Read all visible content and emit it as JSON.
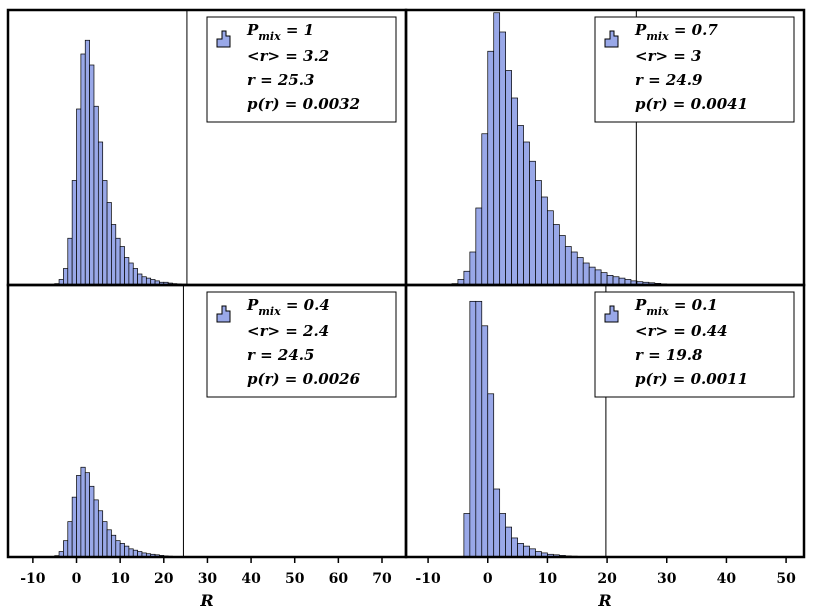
{
  "chart_data": [
    {
      "type": "histogram",
      "color": "#99a8e8",
      "bins": [
        -5,
        -4,
        -3,
        -2,
        -1,
        0,
        1,
        2,
        3,
        4,
        5,
        6,
        7,
        8,
        9,
        10,
        11,
        12,
        13,
        14,
        15,
        16,
        17,
        18,
        19,
        20,
        21,
        22,
        23,
        24,
        25,
        26,
        27
      ],
      "counts": [
        0.5,
        2,
        6,
        17,
        38,
        64,
        84,
        89,
        80,
        65,
        52,
        38,
        30,
        22,
        17,
        14,
        10,
        8,
        6,
        4,
        3,
        2.5,
        2,
        1.5,
        1,
        1,
        0.7,
        0.5,
        0.4,
        0.3,
        0.2,
        0.1
      ],
      "xlim": [
        -15.7,
        75.5
      ],
      "ylim": [
        0,
        100
      ],
      "r": 25.3,
      "legend": {
        "symbol": "P",
        "subscript": "mix",
        "text": " = 1"
      },
      "stats": [
        "<r> = 3.2",
        "r = 25.3",
        "p(r) = 0.0032"
      ]
    },
    {
      "type": "histogram",
      "color": "#99a8e8",
      "bins": [
        -6,
        -5,
        -4,
        -3,
        -2,
        -1,
        0,
        1,
        2,
        3,
        4,
        5,
        6,
        7,
        8,
        9,
        10,
        11,
        12,
        13,
        14,
        15,
        16,
        17,
        18,
        19,
        20,
        21,
        22,
        23,
        24,
        25,
        26,
        27,
        28,
        29,
        30
      ],
      "counts": [
        0.5,
        2,
        5,
        12,
        28,
        55,
        85,
        99,
        92,
        78,
        68,
        58,
        52,
        45,
        38,
        32,
        27,
        22,
        18,
        14,
        12,
        10,
        8,
        6.5,
        5.5,
        4.5,
        3.5,
        3,
        2.5,
        2,
        1.5,
        1.2,
        1,
        0.8,
        0.6,
        0.4
      ],
      "xlim": [
        -13.7,
        53
      ],
      "ylim": [
        0,
        100
      ],
      "r": 24.9,
      "legend": {
        "symbol": "P",
        "subscript": "mix",
        "text": " = 0.7"
      },
      "stats": [
        "<r> = 3",
        "r = 24.9",
        "p(r) = 0.0041"
      ]
    },
    {
      "type": "histogram",
      "color": "#99a8e8",
      "bins": [
        -5,
        -4,
        -3,
        -2,
        -1,
        0,
        1,
        2,
        3,
        4,
        5,
        6,
        7,
        8,
        9,
        10,
        11,
        12,
        13,
        14,
        15,
        16,
        17,
        18,
        19,
        20,
        21,
        22,
        23
      ],
      "counts": [
        0.5,
        2,
        6,
        13,
        22,
        30,
        33,
        31,
        26,
        21,
        17,
        13,
        10,
        8,
        6,
        5,
        4,
        3,
        2.5,
        2,
        1.5,
        1.2,
        1,
        0.8,
        0.6,
        0.4,
        0.3,
        0.2
      ],
      "xlim": [
        -15.7,
        75.5
      ],
      "ylim": [
        0,
        100
      ],
      "r": 24.5,
      "xticks": [
        -10,
        0,
        10,
        20,
        30,
        40,
        50,
        60,
        70
      ],
      "xlabel": "R",
      "legend": {
        "symbol": "P",
        "subscript": "mix",
        "text": " = 0.4"
      },
      "stats": [
        "<r> = 2.4",
        "r = 24.5",
        "p(r) = 0.0026"
      ]
    },
    {
      "type": "histogram",
      "color": "#99a8e8",
      "bins": [
        -4,
        -3,
        -2,
        -1,
        0,
        1,
        2,
        3,
        4,
        5,
        6,
        7,
        8,
        9,
        10,
        11,
        12,
        13,
        14,
        15,
        16
      ],
      "counts": [
        16,
        94,
        94,
        85,
        60,
        25,
        16,
        11,
        7,
        5,
        4,
        3,
        2,
        1.5,
        1,
        0.8,
        0.6,
        0.4,
        0.3,
        0.2
      ],
      "xlim": [
        -13.7,
        53
      ],
      "ylim": [
        0,
        100
      ],
      "r": 19.8,
      "xticks": [
        -10,
        0,
        10,
        20,
        30,
        40,
        50
      ],
      "xlabel": "R",
      "legend": {
        "symbol": "P",
        "subscript": "mix",
        "text": " = 0.1"
      },
      "stats": [
        "<r> = 0.44",
        "r = 19.8",
        "p(r) = 0.0011"
      ]
    }
  ]
}
